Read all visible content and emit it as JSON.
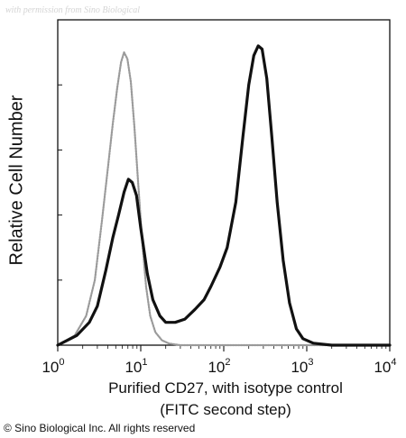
{
  "watermark": "with permission from Sino Biological",
  "copyright": "© Sino Biological Inc. All rights reserved",
  "chart_data": {
    "type": "line",
    "x_scale": "log",
    "xlim": [
      1,
      10000
    ],
    "ylim": [
      0,
      100
    ],
    "ylabel": "Relative Cell Number",
    "xlabel_lines": [
      "Purified CD27, with isotype control",
      "(FITC second step)"
    ],
    "x_ticks": [
      {
        "value": 1,
        "base": "10",
        "exp": "0"
      },
      {
        "value": 10,
        "base": "10",
        "exp": "1"
      },
      {
        "value": 100,
        "base": "10",
        "exp": "2"
      },
      {
        "value": 1000,
        "base": "10",
        "exp": "3"
      },
      {
        "value": 10000,
        "base": "10",
        "exp": "4"
      }
    ],
    "y_ticks": [
      0,
      20,
      40,
      60,
      80,
      100
    ],
    "series": [
      {
        "style": "isotype",
        "color": "#9a9a9a",
        "points": [
          [
            1,
            0
          ],
          [
            1.6,
            3
          ],
          [
            2.2,
            9
          ],
          [
            2.8,
            20
          ],
          [
            3.4,
            38
          ],
          [
            4.0,
            54
          ],
          [
            4.6,
            68
          ],
          [
            5.2,
            79
          ],
          [
            5.8,
            87
          ],
          [
            6.3,
            90
          ],
          [
            6.9,
            88
          ],
          [
            7.6,
            81
          ],
          [
            8.4,
            67
          ],
          [
            9.3,
            50
          ],
          [
            10.4,
            32
          ],
          [
            11.6,
            18
          ],
          [
            13,
            9
          ],
          [
            15,
            4
          ],
          [
            18,
            1.5
          ],
          [
            22,
            0.5
          ],
          [
            30,
            0
          ],
          [
            10000,
            0
          ]
        ]
      },
      {
        "style": "cd27",
        "color": "#111111",
        "points": [
          [
            1,
            0
          ],
          [
            1.7,
            3
          ],
          [
            2.4,
            7
          ],
          [
            3.0,
            12
          ],
          [
            3.8,
            23
          ],
          [
            4.6,
            33
          ],
          [
            5.4,
            40
          ],
          [
            6.3,
            47
          ],
          [
            7.1,
            51
          ],
          [
            7.9,
            50
          ],
          [
            8.9,
            46
          ],
          [
            10,
            36
          ],
          [
            12,
            22
          ],
          [
            14,
            14
          ],
          [
            17,
            9
          ],
          [
            20,
            7
          ],
          [
            26,
            7
          ],
          [
            34,
            8
          ],
          [
            45,
            11
          ],
          [
            58,
            14
          ],
          [
            70,
            18
          ],
          [
            90,
            24
          ],
          [
            110,
            30
          ],
          [
            140,
            44
          ],
          [
            170,
            64
          ],
          [
            200,
            80
          ],
          [
            230,
            89
          ],
          [
            260,
            92
          ],
          [
            290,
            91
          ],
          [
            330,
            82
          ],
          [
            380,
            64
          ],
          [
            440,
            44
          ],
          [
            520,
            26
          ],
          [
            620,
            13
          ],
          [
            750,
            5
          ],
          [
            900,
            2
          ],
          [
            1200,
            0.6
          ],
          [
            2000,
            0
          ],
          [
            10000,
            0
          ]
        ]
      }
    ]
  }
}
